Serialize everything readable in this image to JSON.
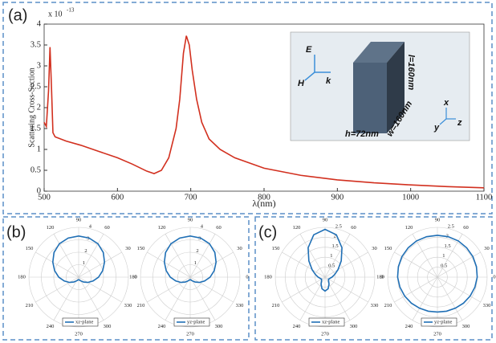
{
  "chart_data": [
    {
      "type": "line",
      "panel_label": "(a)",
      "x_label": "λ(nm)",
      "y_label": "Scattering Cross-Section",
      "y_multiplier": "x 10",
      "y_exponent": "-13",
      "color": "#d2301f",
      "x": [
        500,
        503,
        506,
        508,
        510,
        512,
        515,
        530,
        550,
        575,
        600,
        620,
        640,
        650,
        660,
        670,
        680,
        685,
        690,
        694,
        698,
        702,
        708,
        715,
        725,
        740,
        760,
        800,
        850,
        900,
        950,
        1000,
        1050,
        1100
      ],
      "values": [
        1.65,
        1.55,
        2.4,
        3.45,
        2.5,
        1.4,
        1.3,
        1.2,
        1.1,
        0.95,
        0.8,
        0.65,
        0.48,
        0.42,
        0.5,
        0.8,
        1.5,
        2.2,
        3.3,
        3.72,
        3.5,
        2.9,
        2.2,
        1.65,
        1.25,
        1.0,
        0.8,
        0.55,
        0.38,
        0.27,
        0.2,
        0.15,
        0.11,
        0.08
      ],
      "xlim": [
        500,
        1100
      ],
      "ylim": [
        0,
        4
      ],
      "xticks": [
        500,
        600,
        700,
        800,
        900,
        1000,
        1100
      ],
      "yticks": [
        0,
        0.5,
        1,
        1.5,
        2,
        2.5,
        3,
        3.5,
        4
      ],
      "inset": {
        "e": "E",
        "h": "H",
        "k": "k",
        "l": "l=160nm",
        "w": "w=160nm",
        "hh": "h=72nm",
        "x": "x",
        "y": "y",
        "z": "z"
      }
    },
    {
      "type": "polar",
      "panel_label": "(b)",
      "theta": [
        0,
        15,
        30,
        45,
        60,
        75,
        90,
        105,
        120,
        135,
        150,
        165,
        180,
        195,
        210,
        225,
        240,
        255,
        270,
        285,
        300,
        315,
        330,
        345
      ],
      "series": [
        {
          "name": "xz-plane",
          "color": "#1f6fb5",
          "values": [
            1.6,
            2.0,
            2.4,
            2.8,
            3.1,
            3.25,
            3.3,
            3.25,
            3.1,
            2.8,
            2.4,
            2.0,
            1.6,
            1.2,
            0.85,
            0.55,
            0.35,
            0.25,
            0.2,
            0.25,
            0.35,
            0.55,
            0.85,
            1.2
          ]
        }
      ],
      "rlim": [
        0,
        4
      ],
      "rticks": [
        1,
        2,
        3,
        4
      ],
      "thetaticks": [
        0,
        30,
        60,
        90,
        120,
        150,
        180,
        210,
        240,
        270,
        300,
        330
      ]
    },
    {
      "type": "polar",
      "theta": [
        0,
        15,
        30,
        45,
        60,
        75,
        90,
        105,
        120,
        135,
        150,
        165,
        180,
        195,
        210,
        225,
        240,
        255,
        270,
        285,
        300,
        315,
        330,
        345
      ],
      "series": [
        {
          "name": "yz-plane",
          "color": "#1f6fb5",
          "values": [
            1.6,
            2.0,
            2.4,
            2.8,
            3.1,
            3.25,
            3.3,
            3.25,
            3.1,
            2.8,
            2.4,
            2.0,
            1.6,
            1.2,
            0.85,
            0.55,
            0.35,
            0.25,
            0.2,
            0.25,
            0.35,
            0.55,
            0.85,
            1.2
          ]
        }
      ],
      "rlim": [
        0,
        4
      ],
      "rticks": [
        1,
        2,
        3,
        4
      ],
      "thetaticks": [
        0,
        30,
        60,
        90,
        120,
        150,
        180,
        210,
        240,
        270,
        300,
        330
      ]
    },
    {
      "type": "polar",
      "panel_label": "(c)",
      "theta": [
        0,
        15,
        30,
        45,
        60,
        75,
        90,
        105,
        120,
        135,
        150,
        165,
        180,
        195,
        210,
        225,
        240,
        255,
        270,
        285,
        300,
        315,
        330,
        345
      ],
      "series": [
        {
          "name": "xz-plane",
          "color": "#1f6fb5",
          "values": [
            0.35,
            0.5,
            0.75,
            1.15,
            1.7,
            2.2,
            2.4,
            2.2,
            1.7,
            1.15,
            0.75,
            0.5,
            0.35,
            0.25,
            0.2,
            0.25,
            0.4,
            0.6,
            0.7,
            0.6,
            0.4,
            0.25,
            0.2,
            0.25
          ]
        }
      ],
      "rlim": [
        0,
        2.5
      ],
      "rticks": [
        0.5,
        1,
        1.5,
        2,
        2.5
      ],
      "thetaticks": [
        0,
        30,
        60,
        90,
        120,
        150,
        180,
        210,
        240,
        270,
        300,
        330
      ]
    },
    {
      "type": "polar",
      "theta": [
        0,
        15,
        30,
        45,
        60,
        75,
        90,
        105,
        120,
        135,
        150,
        165,
        180,
        195,
        210,
        225,
        240,
        255,
        270,
        285,
        300,
        315,
        330,
        345
      ],
      "series": [
        {
          "name": "yz-plane",
          "color": "#1f6fb5",
          "values": [
            2.0,
            2.03,
            2.06,
            2.08,
            2.1,
            2.1,
            2.1,
            2.1,
            2.1,
            2.08,
            2.06,
            2.03,
            2.0,
            1.95,
            1.9,
            1.85,
            1.8,
            1.77,
            1.75,
            1.77,
            1.8,
            1.85,
            1.9,
            1.95
          ]
        }
      ],
      "rlim": [
        0,
        2.5
      ],
      "rticks": [
        0.5,
        1,
        1.5,
        2,
        2.5
      ],
      "thetaticks": [
        0,
        30,
        60,
        90,
        120,
        150,
        180,
        210,
        240,
        270,
        300,
        330
      ]
    }
  ]
}
